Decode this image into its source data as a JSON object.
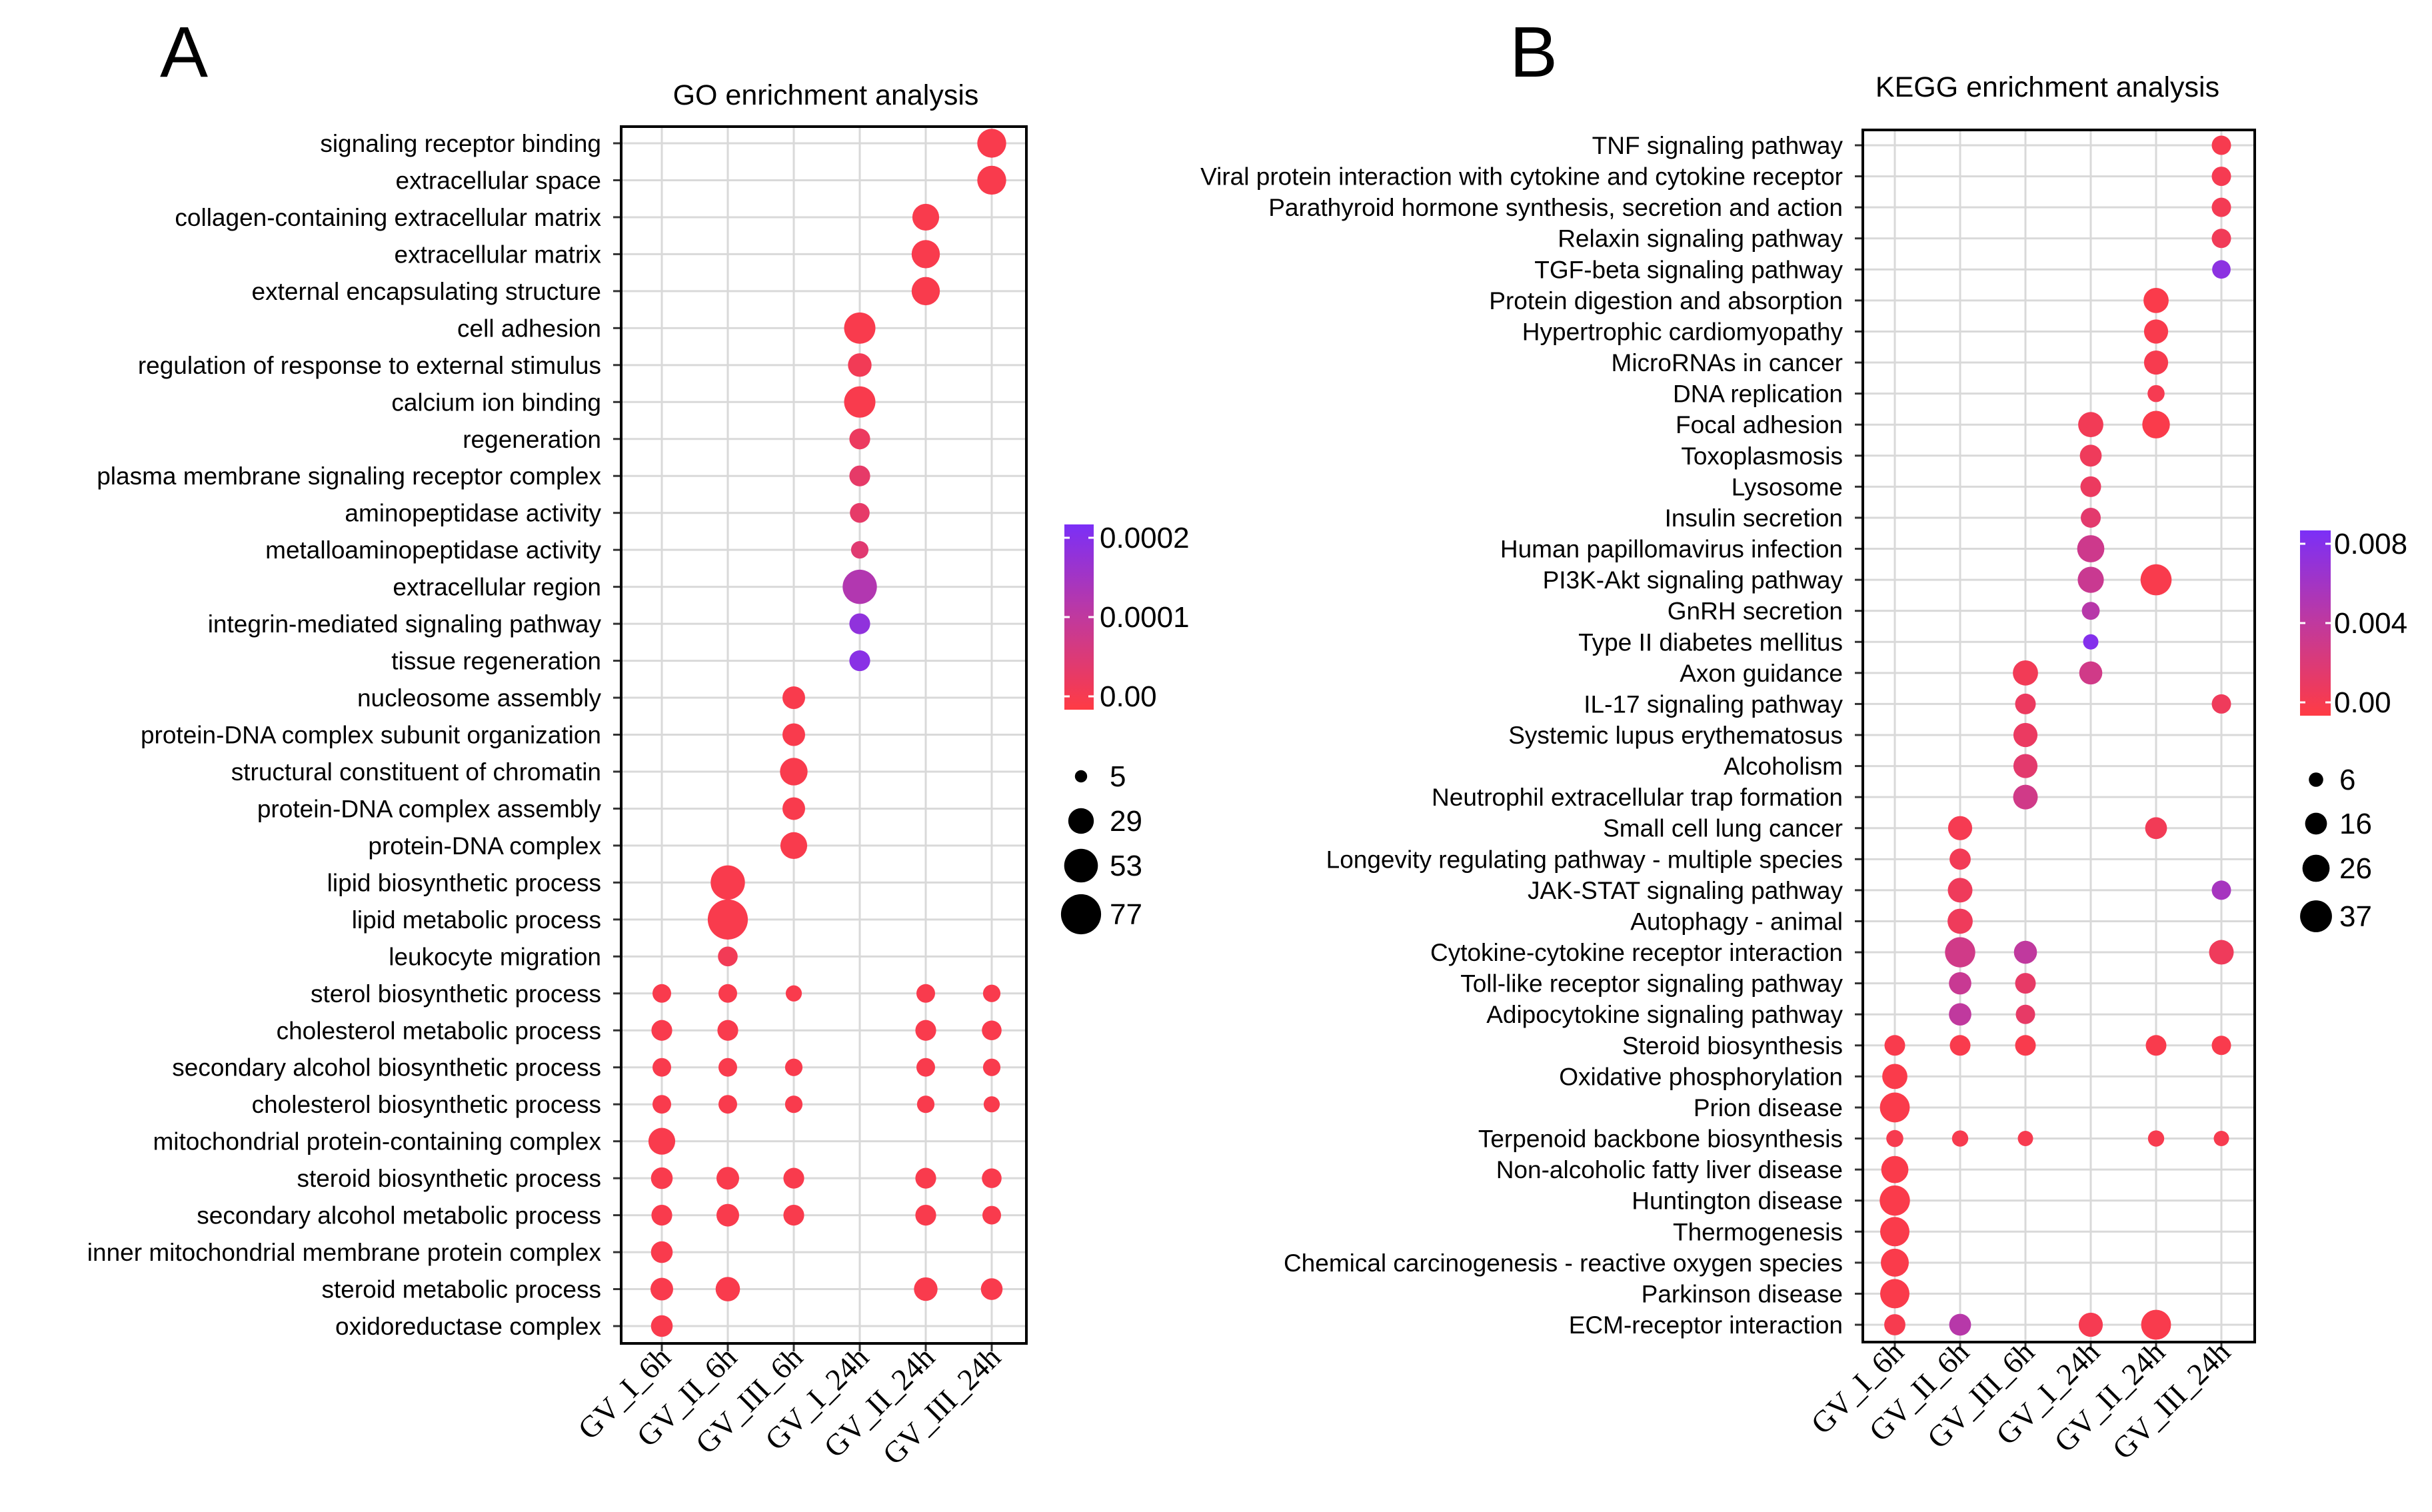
{
  "panels": [
    {
      "letter": "A"
    },
    {
      "letter": "B"
    }
  ],
  "colors": {
    "low": "#ff3b44",
    "mid": "#c0399e",
    "high": "#7b2ff7",
    "grid": "#d9d9d9",
    "frame": "#000000"
  },
  "chart_data": [
    {
      "type": "scatter",
      "subtype": "dot-plot",
      "title": "GO enrichment analysis",
      "categories": [
        "GV_I_6h",
        "GV_II_6h",
        "GV_III_6h",
        "GV_I_24h",
        "GV_II_24h",
        "GV_III_24h"
      ],
      "terms": [
        "signaling receptor binding",
        "extracellular space",
        "collagen-containing extracellular matrix",
        "extracellular matrix",
        "external encapsulating structure",
        "cell adhesion",
        "regulation of response to external stimulus",
        "calcium ion binding",
        "regeneration",
        "plasma membrane signaling receptor complex",
        "aminopeptidase activity",
        "metalloaminopeptidase activity",
        "extracellular region",
        "integrin-mediated signaling pathway",
        "tissue regeneration",
        "nucleosome assembly",
        "protein-DNA complex subunit organization",
        "structural constituent of chromatin",
        "protein-DNA complex assembly",
        "protein-DNA complex",
        "lipid biosynthetic process",
        "lipid metabolic process",
        "leukocyte migration",
        "sterol biosynthetic process",
        "cholesterol metabolic process",
        "secondary alcohol biosynthetic process",
        "cholesterol biosynthetic process",
        "mitochondrial protein-containing complex",
        "steroid biosynthetic process",
        "secondary alcohol metabolic process",
        "inner mitochondrial membrane protein complex",
        "steroid metabolic process",
        "oxidoreductase complex"
      ],
      "points": [
        {
          "term": 0,
          "group": 5,
          "count": 38,
          "p": 1e-05
        },
        {
          "term": 1,
          "group": 5,
          "count": 38,
          "p": 1e-05
        },
        {
          "term": 2,
          "group": 4,
          "count": 32,
          "p": 1e-05
        },
        {
          "term": 3,
          "group": 4,
          "count": 36,
          "p": 1e-05
        },
        {
          "term": 4,
          "group": 4,
          "count": 36,
          "p": 1e-05
        },
        {
          "term": 5,
          "group": 3,
          "count": 45,
          "p": 1e-05
        },
        {
          "term": 6,
          "group": 3,
          "count": 24,
          "p": 2e-05
        },
        {
          "term": 7,
          "group": 3,
          "count": 45,
          "p": 1e-05
        },
        {
          "term": 8,
          "group": 3,
          "count": 18,
          "p": 3e-05
        },
        {
          "term": 9,
          "group": 3,
          "count": 18,
          "p": 4e-05
        },
        {
          "term": 10,
          "group": 3,
          "count": 16,
          "p": 4e-05
        },
        {
          "term": 11,
          "group": 3,
          "count": 12,
          "p": 5e-05
        },
        {
          "term": 12,
          "group": 3,
          "count": 55,
          "p": 0.00012
        },
        {
          "term": 13,
          "group": 3,
          "count": 18,
          "p": 0.00017
        },
        {
          "term": 14,
          "group": 3,
          "count": 18,
          "p": 0.00018
        },
        {
          "term": 15,
          "group": 2,
          "count": 22,
          "p": 1e-05
        },
        {
          "term": 16,
          "group": 2,
          "count": 22,
          "p": 1e-05
        },
        {
          "term": 17,
          "group": 2,
          "count": 34,
          "p": 1e-05
        },
        {
          "term": 18,
          "group": 2,
          "count": 22,
          "p": 1e-05
        },
        {
          "term": 19,
          "group": 2,
          "count": 32,
          "p": 1e-05
        },
        {
          "term": 20,
          "group": 1,
          "count": 55,
          "p": 1e-05
        },
        {
          "term": 21,
          "group": 1,
          "count": 77,
          "p": 1e-05
        },
        {
          "term": 22,
          "group": 1,
          "count": 16,
          "p": 2e-05
        },
        {
          "term": 23,
          "group": 0,
          "count": 14,
          "p": 1e-05
        },
        {
          "term": 23,
          "group": 1,
          "count": 14,
          "p": 1e-05
        },
        {
          "term": 23,
          "group": 2,
          "count": 10,
          "p": 1e-05
        },
        {
          "term": 23,
          "group": 4,
          "count": 14,
          "p": 1e-05
        },
        {
          "term": 23,
          "group": 5,
          "count": 12,
          "p": 1e-05
        },
        {
          "term": 24,
          "group": 0,
          "count": 18,
          "p": 1e-05
        },
        {
          "term": 24,
          "group": 1,
          "count": 18,
          "p": 1e-05
        },
        {
          "term": 24,
          "group": 4,
          "count": 18,
          "p": 1e-05
        },
        {
          "term": 24,
          "group": 5,
          "count": 16,
          "p": 1e-05
        },
        {
          "term": 25,
          "group": 0,
          "count": 14,
          "p": 1e-05
        },
        {
          "term": 25,
          "group": 1,
          "count": 14,
          "p": 1e-05
        },
        {
          "term": 25,
          "group": 2,
          "count": 12,
          "p": 1e-05
        },
        {
          "term": 25,
          "group": 4,
          "count": 14,
          "p": 1e-05
        },
        {
          "term": 25,
          "group": 5,
          "count": 12,
          "p": 1e-05
        },
        {
          "term": 26,
          "group": 0,
          "count": 14,
          "p": 1e-05
        },
        {
          "term": 26,
          "group": 1,
          "count": 14,
          "p": 1e-05
        },
        {
          "term": 26,
          "group": 2,
          "count": 12,
          "p": 1e-05
        },
        {
          "term": 26,
          "group": 4,
          "count": 12,
          "p": 1e-05
        },
        {
          "term": 26,
          "group": 5,
          "count": 10,
          "p": 1e-05
        },
        {
          "term": 27,
          "group": 0,
          "count": 32,
          "p": 1e-05
        },
        {
          "term": 28,
          "group": 0,
          "count": 20,
          "p": 1e-05
        },
        {
          "term": 28,
          "group": 1,
          "count": 22,
          "p": 1e-05
        },
        {
          "term": 28,
          "group": 2,
          "count": 18,
          "p": 1e-05
        },
        {
          "term": 28,
          "group": 4,
          "count": 18,
          "p": 1e-05
        },
        {
          "term": 28,
          "group": 5,
          "count": 16,
          "p": 1e-05
        },
        {
          "term": 29,
          "group": 0,
          "count": 18,
          "p": 1e-05
        },
        {
          "term": 29,
          "group": 1,
          "count": 22,
          "p": 1e-05
        },
        {
          "term": 29,
          "group": 2,
          "count": 18,
          "p": 1e-05
        },
        {
          "term": 29,
          "group": 4,
          "count": 18,
          "p": 1e-05
        },
        {
          "term": 29,
          "group": 5,
          "count": 14,
          "p": 1e-05
        },
        {
          "term": 30,
          "group": 0,
          "count": 20,
          "p": 1e-05
        },
        {
          "term": 31,
          "group": 0,
          "count": 22,
          "p": 1e-05
        },
        {
          "term": 31,
          "group": 1,
          "count": 26,
          "p": 1e-05
        },
        {
          "term": 31,
          "group": 4,
          "count": 24,
          "p": 1e-05
        },
        {
          "term": 31,
          "group": 5,
          "count": 20,
          "p": 1e-05
        },
        {
          "term": 32,
          "group": 0,
          "count": 20,
          "p": 1e-05
        }
      ],
      "color_scale": {
        "label_ticks": [
          "0.0002",
          "0.0001",
          "0.00"
        ],
        "min": 0,
        "max": 0.0002
      },
      "size_legend": {
        "labels": [
          "5",
          "29",
          "53",
          "77"
        ],
        "values": [
          5,
          29,
          53,
          77
        ]
      }
    },
    {
      "type": "scatter",
      "subtype": "dot-plot",
      "title": "KEGG enrichment analysis",
      "categories": [
        "GV_I_6h",
        "GV_II_6h",
        "GV_III_6h",
        "GV_I_24h",
        "GV_II_24h",
        "GV_III_24h"
      ],
      "terms": [
        "TNF signaling pathway",
        "Viral protein interaction with cytokine and cytokine receptor",
        "Parathyroid hormone synthesis, secretion and action",
        "Relaxin signaling pathway",
        "TGF-beta signaling pathway",
        "Protein digestion and absorption",
        "Hypertrophic cardiomyopathy",
        "MicroRNAs in cancer",
        "DNA replication",
        "Focal adhesion",
        "Toxoplasmosis",
        "Lysosome",
        "Insulin secretion",
        "Human papillomavirus infection",
        "PI3K-Akt signaling pathway",
        "GnRH secretion",
        "Type II diabetes mellitus",
        "Axon guidance",
        "IL-17 signaling pathway",
        "Systemic lupus erythematosus",
        "Alcoholism",
        "Neutrophil extracellular trap formation",
        "Small cell lung cancer",
        "Longevity regulating pathway - multiple species",
        "JAK-STAT signaling pathway",
        "Autophagy - animal",
        "Cytokine-cytokine receptor interaction",
        "Toll-like receptor signaling pathway",
        "Adipocytokine signaling pathway",
        "Steroid biosynthesis",
        "Oxidative phosphorylation",
        "Prion disease",
        "Terpenoid backbone biosynthesis",
        "Non-alcoholic fatty liver disease",
        "Huntington disease",
        "Thermogenesis",
        "Chemical carcinogenesis - reactive oxygen species",
        "Parkinson disease",
        "ECM-receptor interaction"
      ],
      "points": [
        {
          "term": 0,
          "group": 5,
          "count": 12,
          "p": 0.0005
        },
        {
          "term": 1,
          "group": 5,
          "count": 12,
          "p": 0.0006
        },
        {
          "term": 2,
          "group": 5,
          "count": 12,
          "p": 0.0007
        },
        {
          "term": 3,
          "group": 5,
          "count": 12,
          "p": 0.0009
        },
        {
          "term": 4,
          "group": 5,
          "count": 11,
          "p": 0.007
        },
        {
          "term": 5,
          "group": 4,
          "count": 22,
          "p": 0.0003
        },
        {
          "term": 6,
          "group": 4,
          "count": 20,
          "p": 0.0004
        },
        {
          "term": 7,
          "group": 4,
          "count": 20,
          "p": 0.0005
        },
        {
          "term": 8,
          "group": 4,
          "count": 9,
          "p": 0.0006
        },
        {
          "term": 9,
          "group": 3,
          "count": 22,
          "p": 0.0008
        },
        {
          "term": 9,
          "group": 4,
          "count": 27,
          "p": 0.0003
        },
        {
          "term": 10,
          "group": 3,
          "count": 16,
          "p": 0.001
        },
        {
          "term": 11,
          "group": 3,
          "count": 14,
          "p": 0.0012
        },
        {
          "term": 12,
          "group": 3,
          "count": 13,
          "p": 0.0018
        },
        {
          "term": 13,
          "group": 3,
          "count": 26,
          "p": 0.0032
        },
        {
          "term": 14,
          "group": 3,
          "count": 24,
          "p": 0.0034
        },
        {
          "term": 14,
          "group": 4,
          "count": 35,
          "p": 0.0004
        },
        {
          "term": 15,
          "group": 3,
          "count": 10,
          "p": 0.0045
        },
        {
          "term": 16,
          "group": 3,
          "count": 7,
          "p": 0.0075
        },
        {
          "term": 17,
          "group": 2,
          "count": 22,
          "p": 0.0008
        },
        {
          "term": 17,
          "group": 3,
          "count": 18,
          "p": 0.003
        },
        {
          "term": 18,
          "group": 2,
          "count": 14,
          "p": 0.0012
        },
        {
          "term": 18,
          "group": 5,
          "count": 12,
          "p": 0.001
        },
        {
          "term": 19,
          "group": 2,
          "count": 20,
          "p": 0.0013
        },
        {
          "term": 20,
          "group": 2,
          "count": 20,
          "p": 0.0018
        },
        {
          "term": 21,
          "group": 2,
          "count": 21,
          "p": 0.003
        },
        {
          "term": 22,
          "group": 1,
          "count": 20,
          "p": 0.0006
        },
        {
          "term": 22,
          "group": 4,
          "count": 16,
          "p": 0.0008
        },
        {
          "term": 23,
          "group": 1,
          "count": 15,
          "p": 0.0008
        },
        {
          "term": 24,
          "group": 1,
          "count": 21,
          "p": 0.001
        },
        {
          "term": 24,
          "group": 5,
          "count": 12,
          "p": 0.0055
        },
        {
          "term": 25,
          "group": 1,
          "count": 22,
          "p": 0.001
        },
        {
          "term": 26,
          "group": 1,
          "count": 33,
          "p": 0.003
        },
        {
          "term": 26,
          "group": 2,
          "count": 18,
          "p": 0.004
        },
        {
          "term": 26,
          "group": 5,
          "count": 21,
          "p": 0.001
        },
        {
          "term": 27,
          "group": 1,
          "count": 17,
          "p": 0.0035
        },
        {
          "term": 27,
          "group": 2,
          "count": 14,
          "p": 0.0015
        },
        {
          "term": 28,
          "group": 1,
          "count": 17,
          "p": 0.004
        },
        {
          "term": 28,
          "group": 2,
          "count": 12,
          "p": 0.0015
        },
        {
          "term": 29,
          "group": 0,
          "count": 14,
          "p": 0.0004
        },
        {
          "term": 29,
          "group": 1,
          "count": 14,
          "p": 0.0004
        },
        {
          "term": 29,
          "group": 2,
          "count": 14,
          "p": 0.0004
        },
        {
          "term": 29,
          "group": 4,
          "count": 14,
          "p": 0.0004
        },
        {
          "term": 29,
          "group": 5,
          "count": 12,
          "p": 0.0004
        },
        {
          "term": 30,
          "group": 0,
          "count": 22,
          "p": 0.0003
        },
        {
          "term": 31,
          "group": 0,
          "count": 32,
          "p": 0.0003
        },
        {
          "term": 32,
          "group": 0,
          "count": 9,
          "p": 0.0005
        },
        {
          "term": 32,
          "group": 1,
          "count": 8,
          "p": 0.0005
        },
        {
          "term": 32,
          "group": 2,
          "count": 7,
          "p": 0.0005
        },
        {
          "term": 32,
          "group": 4,
          "count": 8,
          "p": 0.0005
        },
        {
          "term": 32,
          "group": 5,
          "count": 7,
          "p": 0.0005
        },
        {
          "term": 33,
          "group": 0,
          "count": 26,
          "p": 0.0003
        },
        {
          "term": 34,
          "group": 0,
          "count": 33,
          "p": 0.0003
        },
        {
          "term": 35,
          "group": 0,
          "count": 31,
          "p": 0.0003
        },
        {
          "term": 36,
          "group": 0,
          "count": 28,
          "p": 0.0003
        },
        {
          "term": 37,
          "group": 0,
          "count": 31,
          "p": 0.0003
        },
        {
          "term": 38,
          "group": 0,
          "count": 15,
          "p": 0.0005
        },
        {
          "term": 38,
          "group": 1,
          "count": 16,
          "p": 0.0045
        },
        {
          "term": 38,
          "group": 3,
          "count": 20,
          "p": 0.0006
        },
        {
          "term": 38,
          "group": 4,
          "count": 32,
          "p": 0.0004
        }
      ],
      "color_scale": {
        "label_ticks": [
          "0.008",
          "0.004",
          "0.00"
        ],
        "min": 0,
        "max": 0.008
      },
      "size_legend": {
        "labels": [
          "6",
          "16",
          "26",
          "37"
        ],
        "values": [
          6,
          16,
          26,
          37
        ]
      }
    }
  ]
}
